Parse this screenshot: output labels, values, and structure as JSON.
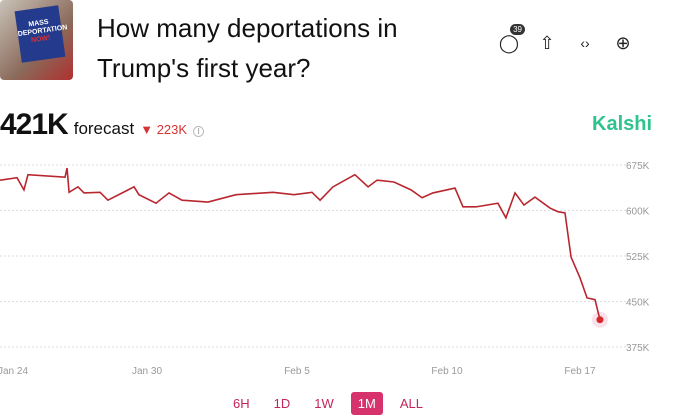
{
  "header": {
    "thumbnail_text": [
      "MASS",
      "DEPORTATION",
      "NOW!"
    ],
    "title": "How many deportations in Trump's first year?",
    "comments_count": "39"
  },
  "icons": [
    "comment-icon",
    "share-icon",
    "embed-icon",
    "add-icon"
  ],
  "forecast": {
    "value": "421K",
    "label": "forecast",
    "change": "223K",
    "change_direction": "down"
  },
  "brand": "Kalshi",
  "colors": {
    "line": "#b8262e",
    "brand": "#2fc48d",
    "accent": "#d6336c"
  },
  "ranges": [
    {
      "label": "6H"
    },
    {
      "label": "1D"
    },
    {
      "label": "1W"
    },
    {
      "label": "1M",
      "active": true
    },
    {
      "label": "ALL"
    }
  ],
  "chart_data": {
    "type": "line",
    "title": "",
    "xlabel": "",
    "ylabel": "",
    "ylim": [
      375,
      675
    ],
    "y_unit": "K",
    "y_ticks": [
      "675K",
      "600K",
      "525K",
      "450K",
      "375K"
    ],
    "x_ticks": [
      {
        "label": "Jan 24",
        "day": 0
      },
      {
        "label": "Jan 30",
        "day": 6
      },
      {
        "label": "Feb 5",
        "day": 12
      },
      {
        "label": "Feb 10",
        "day": 17
      },
      {
        "label": "Feb 17",
        "day": 24
      }
    ],
    "grid": true,
    "legend": "none",
    "series": [
      {
        "name": "forecast",
        "points": [
          [
            -0.58,
            650
          ],
          [
            0.18,
            654
          ],
          [
            0.49,
            634
          ],
          [
            0.67,
            659
          ],
          [
            2.33,
            655
          ],
          [
            2.42,
            670
          ],
          [
            2.51,
            630
          ],
          [
            2.91,
            639
          ],
          [
            3.18,
            629
          ],
          [
            3.9,
            630
          ],
          [
            4.25,
            617
          ],
          [
            5.42,
            639
          ],
          [
            5.64,
            626
          ],
          [
            6.36,
            612
          ],
          [
            6.88,
            629
          ],
          [
            7.4,
            617
          ],
          [
            8.44,
            614
          ],
          [
            9.56,
            626
          ],
          [
            11.04,
            630
          ],
          [
            11.88,
            626
          ],
          [
            12.5,
            630
          ],
          [
            12.77,
            617
          ],
          [
            13.2,
            639
          ],
          [
            13.93,
            659
          ],
          [
            14.37,
            639
          ],
          [
            14.67,
            650
          ],
          [
            15.23,
            647
          ],
          [
            15.8,
            634
          ],
          [
            16.17,
            621
          ],
          [
            16.53,
            629
          ],
          [
            17.42,
            637
          ],
          [
            17.84,
            606
          ],
          [
            18.53,
            606
          ],
          [
            19.68,
            612
          ],
          [
            20.1,
            588
          ],
          [
            20.58,
            629
          ],
          [
            21.05,
            609
          ],
          [
            21.63,
            622
          ],
          [
            22.42,
            604
          ],
          [
            22.84,
            598
          ],
          [
            23.21,
            596
          ],
          [
            23.53,
            523
          ],
          [
            24,
            489
          ],
          [
            24.37,
            456
          ],
          [
            24.79,
            453
          ],
          [
            25.05,
            420
          ]
        ]
      }
    ]
  }
}
